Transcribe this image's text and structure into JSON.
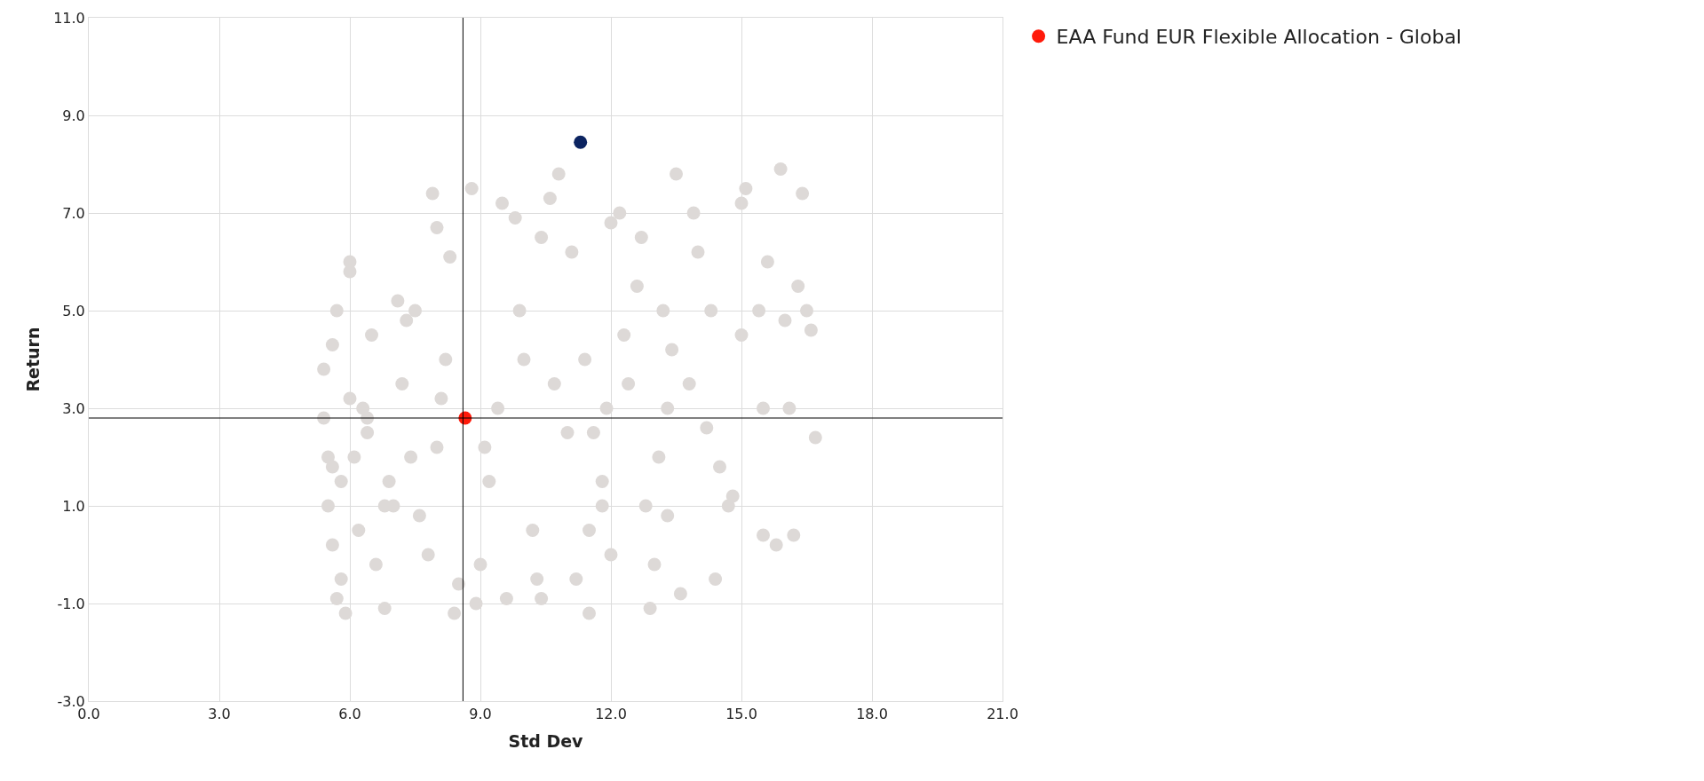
{
  "chart_data": {
    "type": "scatter",
    "xlabel": "Std Dev",
    "ylabel": "Return",
    "xlim": [
      0,
      21
    ],
    "ylim": [
      -3,
      11
    ],
    "xticks": [
      {
        "value": 0,
        "label": "0.0"
      },
      {
        "value": 3,
        "label": "3.0"
      },
      {
        "value": 6,
        "label": "6.0"
      },
      {
        "value": 9,
        "label": "9.0"
      },
      {
        "value": 12,
        "label": "12.0"
      },
      {
        "value": 15,
        "label": "15.0"
      },
      {
        "value": 18,
        "label": "18.0"
      },
      {
        "value": 21,
        "label": "21.0"
      }
    ],
    "yticks": [
      {
        "value": -3,
        "label": "-3.0"
      },
      {
        "value": -1,
        "label": "-1.0"
      },
      {
        "value": 1,
        "label": "1.0"
      },
      {
        "value": 3,
        "label": "3.0"
      },
      {
        "value": 5,
        "label": "5.0"
      },
      {
        "value": 7,
        "label": "7.0"
      },
      {
        "value": 9,
        "label": "9.0"
      },
      {
        "value": 11,
        "label": "11.0"
      }
    ],
    "grid": true,
    "legend": "top right",
    "marker": "circle",
    "ref_lines": [
      {
        "axis": "x",
        "value": 8.6,
        "color": "#000000"
      },
      {
        "axis": "y",
        "value": 2.8,
        "color": "#000000"
      }
    ],
    "series": [
      {
        "color": "#ddd9d7",
        "x": [
          5.4,
          5.5,
          5.6,
          5.7,
          5.8,
          5.4,
          5.6,
          5.9,
          6.0,
          6.2,
          6.4,
          6.5,
          6.8,
          7.0,
          7.2,
          7.5,
          7.8,
          8.0,
          8.2,
          8.4,
          5.5,
          5.8,
          6.1,
          6.3,
          6.6,
          6.9,
          7.3,
          7.6,
          8.1,
          8.5,
          5.7,
          6.0,
          6.4,
          6.8,
          7.1,
          7.4,
          7.9,
          8.3,
          8.8,
          9.2,
          9.6,
          10.0,
          10.4,
          10.8,
          11.2,
          11.6,
          12.0,
          12.4,
          12.8,
          13.2,
          9.0,
          9.4,
          9.8,
          10.2,
          10.6,
          11.0,
          11.4,
          11.8,
          12.2,
          12.6,
          9.1,
          9.5,
          9.9,
          10.3,
          10.7,
          11.1,
          11.5,
          11.9,
          12.3,
          12.7,
          13.1,
          13.5,
          13.9,
          14.3,
          14.7,
          15.1,
          15.5,
          15.9,
          16.3,
          16.7,
          13.0,
          13.4,
          14.0,
          14.5,
          15.0,
          15.6,
          16.1,
          16.5,
          13.3,
          13.8,
          14.4,
          15.0,
          15.5,
          16.0,
          16.4,
          13.6,
          14.2,
          14.8,
          15.4,
          16.2,
          8.0,
          8.9,
          10.4,
          11.8,
          13.3,
          15.8,
          16.6,
          11.5,
          12.0,
          12.9,
          6.0,
          5.6
        ],
        "values": [
          3.8,
          2.0,
          0.2,
          -0.9,
          1.5,
          2.8,
          4.3,
          -1.2,
          3.2,
          0.5,
          2.5,
          4.5,
          -1.1,
          1.0,
          3.5,
          5.0,
          0.0,
          2.2,
          4.0,
          -1.2,
          1.0,
          -0.5,
          2.0,
          3.0,
          -0.2,
          1.5,
          4.8,
          0.8,
          3.2,
          -0.6,
          5.0,
          6.0,
          2.8,
          1.0,
          5.2,
          2.0,
          7.4,
          6.1,
          7.5,
          1.5,
          -0.9,
          4.0,
          6.5,
          7.8,
          -0.5,
          2.5,
          6.8,
          3.5,
          1.0,
          5.0,
          -0.2,
          3.0,
          6.9,
          0.5,
          7.3,
          2.5,
          4.0,
          1.5,
          7.0,
          5.5,
          2.2,
          7.2,
          5.0,
          -0.5,
          3.5,
          6.2,
          0.5,
          3.0,
          4.5,
          6.5,
          2.0,
          7.8,
          7.0,
          5.0,
          1.0,
          7.5,
          3.0,
          7.9,
          5.5,
          2.4,
          -0.2,
          4.2,
          6.2,
          1.8,
          4.5,
          6.0,
          3.0,
          5.0,
          0.8,
          3.5,
          -0.5,
          7.2,
          0.4,
          4.8,
          7.4,
          -0.8,
          2.6,
          1.2,
          5.0,
          0.4,
          6.7,
          -1.0,
          -0.9,
          1.0,
          3.0,
          0.2,
          4.6,
          -1.2,
          0.0,
          -1.1,
          5.8,
          1.8
        ]
      },
      {
        "color": "#0c2461",
        "x": [
          11.3
        ],
        "values": [
          8.45
        ]
      },
      {
        "name": "EAA Fund EUR Flexible Allocation - Global",
        "color": "#ff1a0a",
        "x": [
          8.65
        ],
        "values": [
          2.8
        ]
      }
    ]
  }
}
